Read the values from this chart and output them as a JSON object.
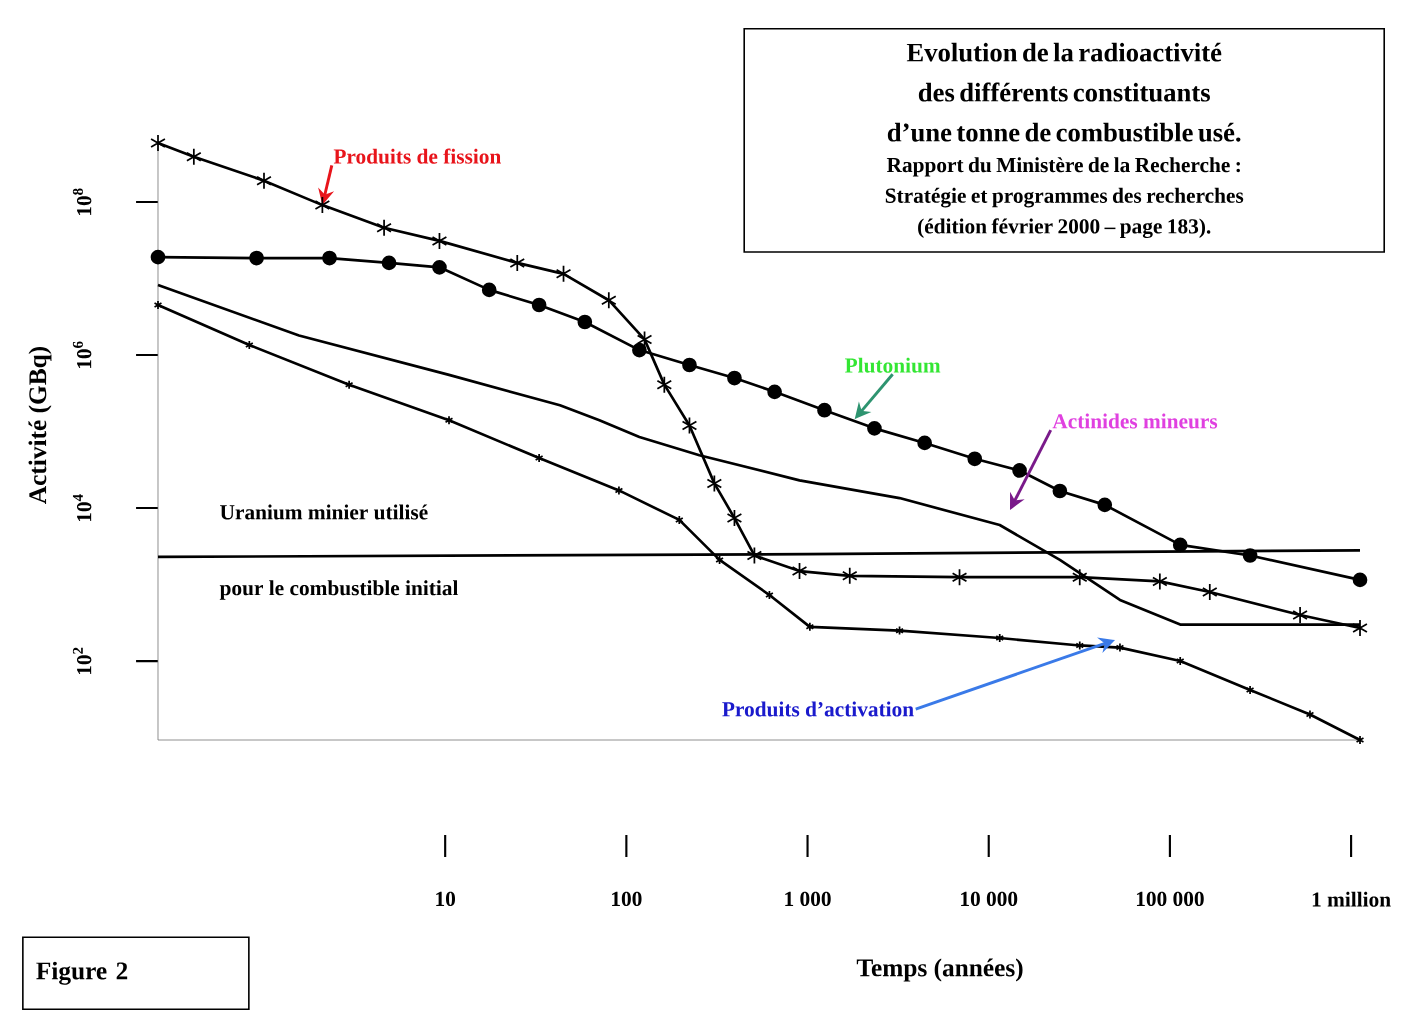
{
  "chart_data": {
    "type": "line",
    "title": "Evolution de la radioactivité des différents constituants d’une tonne de combustible usé.",
    "subtitle": "Rapport du Ministère de la Recherche : Stratégie et programmes des recherches (édition février 2000 – page 183).",
    "xlabel": "Temps (années)",
    "ylabel": "Activité (GBq)",
    "log": "xy",
    "xlim": [
      0.26,
      1120000
    ],
    "ylim": [
      9.3,
      590000000
    ],
    "xticks": [
      {
        "value": 10,
        "label": "10"
      },
      {
        "value": 100,
        "label": "100"
      },
      {
        "value": 1000,
        "label": "1 000"
      },
      {
        "value": 10000,
        "label": "10 000"
      },
      {
        "value": 100000,
        "label": "100 000"
      },
      {
        "value": 1000000,
        "label": "1 million"
      }
    ],
    "yticks": [
      {
        "value": 100,
        "label": "10$^{2}$"
      },
      {
        "value": 10000,
        "label": "10$^{4}$"
      },
      {
        "value": 1000000,
        "label": "10$^{6}$"
      },
      {
        "value": 100000000,
        "label": "10$^{8}$"
      }
    ],
    "series": [
      {
        "color": "#000000",
        "marker": "cross",
        "x": [
          0.26,
          0.41,
          1.0,
          2.1,
          4.6,
          9.3,
          25,
          45,
          80,
          126,
          162,
          223,
          306,
          395,
          509,
          903,
          1710,
          6900,
          31800,
          88000,
          166000,
          523000,
          1120000
        ],
        "values": [
          590000000,
          390000000,
          190000000,
          91000000,
          46000000,
          31000000,
          16000000,
          11500000,
          5200000,
          1600000,
          410000,
          120000,
          21000,
          7400,
          2400,
          1500,
          1300,
          1250,
          1250,
          1100,
          800,
          400,
          270
        ]
      },
      {
        "color": "#000000",
        "marker": "circle",
        "x": [
          0.26,
          0.91,
          2.3,
          4.9,
          9.3,
          17.5,
          33,
          59,
          118,
          223,
          395,
          658,
          1240,
          2340,
          4430,
          8370,
          14800,
          24700,
          43700,
          114000,
          277000,
          1120000
        ],
        "values": [
          19000000,
          18500000,
          18500000,
          16000000,
          14000000,
          7100000,
          4500000,
          2700000,
          1160000,
          740000,
          500000,
          330000,
          190000,
          110000,
          71000,
          44000,
          31000,
          16700,
          11000,
          3300,
          2400,
          1150
        ]
      },
      {
        "color": "#000000",
        "marker": "none",
        "x": [
          0.26,
          1.56,
          10.5,
          43,
          71,
          118,
          253,
          903,
          3220,
          11500,
          24700,
          53000,
          114000,
          1120000
        ],
        "values": [
          8200000,
          1800000,
          550000,
          220000,
          140000,
          85000,
          49000,
          23000,
          13500,
          6000,
          2100,
          630,
          300,
          300
        ]
      },
      {
        "color": "#000000",
        "marker": "cross",
        "x": [
          0.26,
          0.83,
          2.95,
          10.5,
          33,
          91,
          196,
          327,
          616,
          1030,
          3220,
          11500,
          31800,
          53000,
          114000,
          277000,
          593000,
          1120000
        ],
        "values": [
          4500000,
          1350000,
          410000,
          140000,
          45000,
          17000,
          7000,
          2100,
          730,
          280,
          250,
          200,
          160,
          150,
          100,
          42,
          20,
          9.3
        ]
      },
      {
        "color": "#000000",
        "marker": "none",
        "x": [
          0.26,
          1000,
          1120000
        ],
        "values": [
          2300,
          2500,
          2800
        ]
      }
    ],
    "annotations": [
      {
        "text": "Produits de fission",
        "x": 2.1,
        "y": 91000000
      },
      {
        "text": "Plutonium",
        "x": 1820,
        "y": 145000
      },
      "Actinides mineurs",
      "Produits d’activation",
      "Uranium minier utilisé",
      "pour le combustible initial",
      "Figure 2"
    ]
  }
}
